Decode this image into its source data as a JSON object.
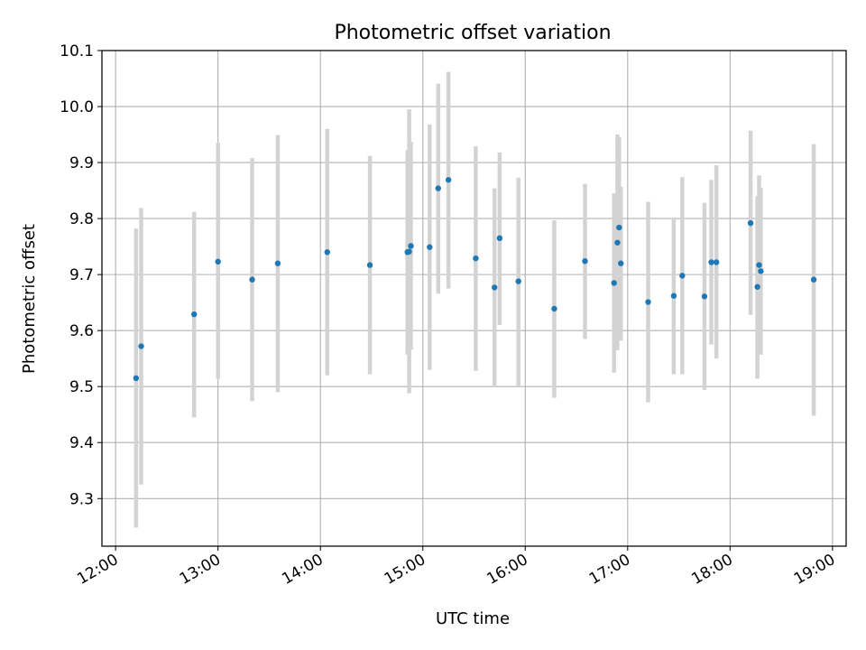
{
  "chart_data": {
    "type": "scatter",
    "title": "Photometric offset variation",
    "xlabel": "UTC time",
    "ylabel": "Photometric offset",
    "xlim": [
      "11:52",
      "19:08"
    ],
    "ylim": [
      9.215,
      10.1
    ],
    "x_ticks": [
      "12:00",
      "13:00",
      "14:00",
      "15:00",
      "16:00",
      "17:00",
      "18:00",
      "19:00"
    ],
    "y_ticks": [
      "9.3",
      "9.4",
      "9.5",
      "9.6",
      "9.7",
      "9.8",
      "9.9",
      "10.0",
      "10.1"
    ],
    "grid": true,
    "series_color": "#1f77b4",
    "errorbar_color": "#d3d3d3",
    "points": [
      {
        "t": "12:12",
        "y": 9.515,
        "err_low": 9.248,
        "err_high": 9.782
      },
      {
        "t": "12:15",
        "y": 9.572,
        "err_low": 9.325,
        "err_high": 9.819
      },
      {
        "t": "12:46",
        "y": 9.629,
        "err_low": 9.445,
        "err_high": 9.812
      },
      {
        "t": "13:00",
        "y": 9.723,
        "err_low": 9.514,
        "err_high": 9.935
      },
      {
        "t": "13:20",
        "y": 9.691,
        "err_low": 9.474,
        "err_high": 9.908
      },
      {
        "t": "13:35",
        "y": 9.72,
        "err_low": 9.49,
        "err_high": 9.949
      },
      {
        "t": "14:04",
        "y": 9.74,
        "err_low": 9.52,
        "err_high": 9.96
      },
      {
        "t": "14:29",
        "y": 9.717,
        "err_low": 9.522,
        "err_high": 9.912
      },
      {
        "t": "14:51",
        "y": 9.74,
        "err_low": 9.557,
        "err_high": 9.922
      },
      {
        "t": "14:52",
        "y": 9.741,
        "err_low": 9.488,
        "err_high": 9.995
      },
      {
        "t": "14:53",
        "y": 9.751,
        "err_low": 9.566,
        "err_high": 9.937
      },
      {
        "t": "15:04",
        "y": 9.749,
        "err_low": 9.53,
        "err_high": 9.968
      },
      {
        "t": "15:09",
        "y": 9.854,
        "err_low": 9.666,
        "err_high": 10.041
      },
      {
        "t": "15:15",
        "y": 9.869,
        "err_low": 9.675,
        "err_high": 10.062
      },
      {
        "t": "15:31",
        "y": 9.729,
        "err_low": 9.528,
        "err_high": 9.929
      },
      {
        "t": "15:42",
        "y": 9.677,
        "err_low": 9.5,
        "err_high": 9.854
      },
      {
        "t": "15:45",
        "y": 9.765,
        "err_low": 9.61,
        "err_high": 9.918
      },
      {
        "t": "15:56",
        "y": 9.688,
        "err_low": 9.5,
        "err_high": 9.873
      },
      {
        "t": "16:17",
        "y": 9.639,
        "err_low": 9.48,
        "err_high": 9.797
      },
      {
        "t": "16:35",
        "y": 9.724,
        "err_low": 9.585,
        "err_high": 9.862
      },
      {
        "t": "16:52",
        "y": 9.685,
        "err_low": 9.525,
        "err_high": 9.845
      },
      {
        "t": "16:54",
        "y": 9.757,
        "err_low": 9.565,
        "err_high": 9.95
      },
      {
        "t": "16:55",
        "y": 9.784,
        "err_low": 9.6,
        "err_high": 9.945
      },
      {
        "t": "16:56",
        "y": 9.72,
        "err_low": 9.582,
        "err_high": 9.857
      },
      {
        "t": "17:12",
        "y": 9.651,
        "err_low": 9.472,
        "err_high": 9.83
      },
      {
        "t": "17:27",
        "y": 9.662,
        "err_low": 9.522,
        "err_high": 9.802
      },
      {
        "t": "17:32",
        "y": 9.698,
        "err_low": 9.522,
        "err_high": 9.874
      },
      {
        "t": "17:45",
        "y": 9.661,
        "err_low": 9.494,
        "err_high": 9.828
      },
      {
        "t": "17:49",
        "y": 9.722,
        "err_low": 9.575,
        "err_high": 9.869
      },
      {
        "t": "17:52",
        "y": 9.722,
        "err_low": 9.55,
        "err_high": 9.895
      },
      {
        "t": "18:12",
        "y": 9.792,
        "err_low": 9.628,
        "err_high": 9.957
      },
      {
        "t": "18:16",
        "y": 9.678,
        "err_low": 9.514,
        "err_high": 9.84
      },
      {
        "t": "18:17",
        "y": 9.717,
        "err_low": 9.557,
        "err_high": 9.877
      },
      {
        "t": "18:18",
        "y": 9.706,
        "err_low": 9.557,
        "err_high": 9.855
      },
      {
        "t": "18:49",
        "y": 9.691,
        "err_low": 9.448,
        "err_high": 9.933
      }
    ]
  }
}
